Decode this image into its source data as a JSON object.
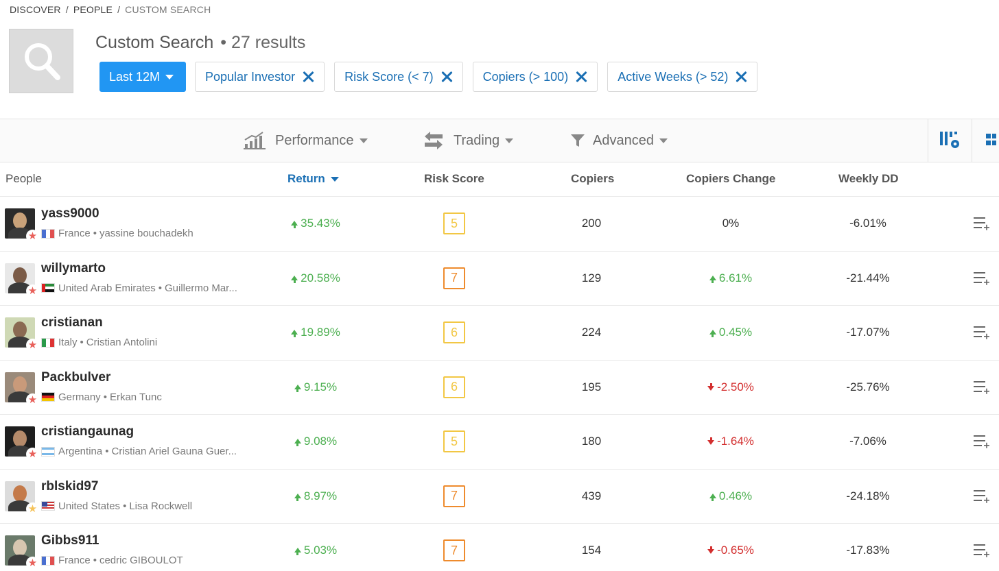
{
  "breadcrumb": [
    "DISCOVER",
    "PEOPLE",
    "CUSTOM SEARCH"
  ],
  "header": {
    "title": "Custom Search",
    "results": "• 27 results"
  },
  "filters": {
    "period": "Last 12M",
    "chips": [
      "Popular Investor",
      "Risk Score (< 7)",
      "Copiers (> 100)",
      "Active Weeks (> 52)"
    ]
  },
  "toolbar": {
    "performance": "Performance",
    "trading": "Trading",
    "advanced": "Advanced"
  },
  "columns": {
    "people": "People",
    "return": "Return",
    "risk": "Risk Score",
    "copiers": "Copiers",
    "change": "Copiers Change",
    "dd": "Weekly DD"
  },
  "colors": {
    "accent": "#2196f3",
    "link": "#1a6fb4",
    "positive": "#4caf50",
    "negative": "#d32f2f",
    "risk_yellow": "#f2c744",
    "risk_orange": "#ee8b2d"
  },
  "rows": [
    {
      "username": "yass9000",
      "country": "France",
      "name": "yassine bouchadekh",
      "return": "35.43%",
      "risk": "5",
      "copiers": "200",
      "change": "0%",
      "change_dir": "flat",
      "dd": "-6.01%",
      "star": "red"
    },
    {
      "username": "willymarto",
      "country": "United Arab Emirates",
      "name": "Guillermo Mar...",
      "return": "20.58%",
      "risk": "7",
      "copiers": "129",
      "change": "6.61%",
      "change_dir": "up",
      "dd": "-21.44%",
      "star": "red"
    },
    {
      "username": "cristianan",
      "country": "Italy",
      "name": "Cristian Antolini",
      "return": "19.89%",
      "risk": "6",
      "copiers": "224",
      "change": "0.45%",
      "change_dir": "up",
      "dd": "-17.07%",
      "star": "red"
    },
    {
      "username": "Packbulver",
      "country": "Germany",
      "name": "Erkan Tunc",
      "return": "9.15%",
      "risk": "6",
      "copiers": "195",
      "change": "-2.50%",
      "change_dir": "down",
      "dd": "-25.76%",
      "star": "red"
    },
    {
      "username": "cristiangaunag",
      "country": "Argentina",
      "name": "Cristian Ariel Gauna Guer...",
      "return": "9.08%",
      "risk": "5",
      "copiers": "180",
      "change": "-1.64%",
      "change_dir": "down",
      "dd": "-7.06%",
      "star": "red"
    },
    {
      "username": "rblskid97",
      "country": "United States",
      "name": "Lisa Rockwell",
      "return": "8.97%",
      "risk": "7",
      "copiers": "439",
      "change": "0.46%",
      "change_dir": "up",
      "dd": "-24.18%",
      "star": "yellow"
    },
    {
      "username": "Gibbs911",
      "country": "France",
      "name": "cedric GIBOULOT",
      "return": "5.03%",
      "risk": "7",
      "copiers": "154",
      "change": "-0.65%",
      "change_dir": "down",
      "dd": "-17.83%",
      "star": "red"
    }
  ]
}
